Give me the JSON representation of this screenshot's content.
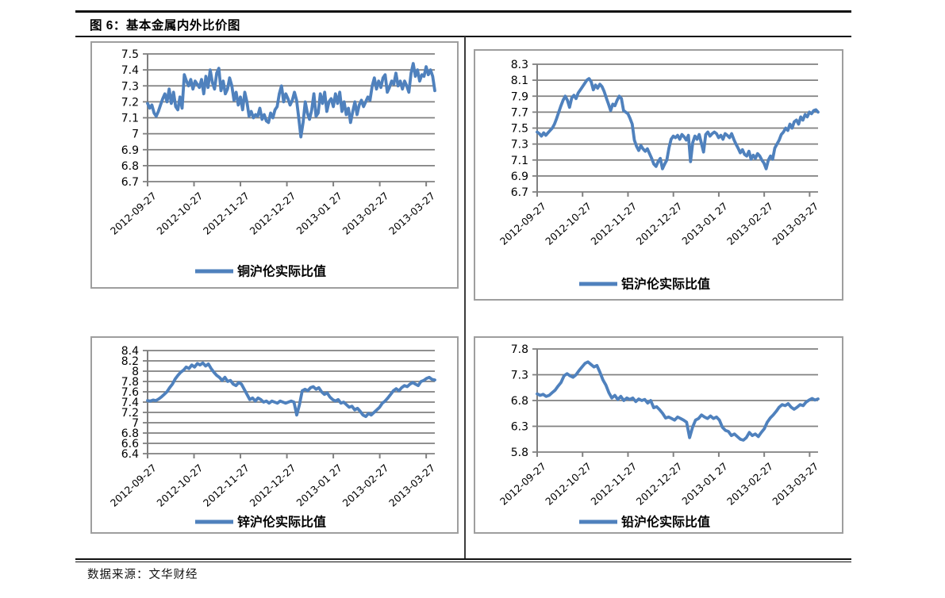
{
  "title": "图 6：基本金属内外比价图",
  "footer": {
    "source_label": "数据来源：文华财经"
  },
  "colors": {
    "line": "#4F81BD",
    "grid": "#808080",
    "box_border": "#9E9E9E"
  },
  "chart_data": [
    {
      "id": "copper",
      "type": "line",
      "series_name": "铜沪伦实际比值",
      "ylim": [
        6.7,
        7.5
      ],
      "yticks": [
        "7.5",
        "7.4",
        "7.3",
        "7.2",
        "7.1",
        "7",
        "6.9",
        "6.8",
        "6.7"
      ],
      "x_tick_labels": [
        "2012-09-27",
        "2012-10-27",
        "2012-11-27",
        "2012-12-27",
        "2013-01 27",
        "2013-02-27",
        "2013-03-27"
      ],
      "values": [
        7.19,
        7.16,
        7.18,
        7.13,
        7.11,
        7.14,
        7.18,
        7.22,
        7.25,
        7.2,
        7.28,
        7.19,
        7.26,
        7.17,
        7.15,
        7.23,
        7.16,
        7.37,
        7.33,
        7.3,
        7.34,
        7.28,
        7.33,
        7.31,
        7.29,
        7.34,
        7.25,
        7.36,
        7.29,
        7.4,
        7.32,
        7.28,
        7.38,
        7.41,
        7.27,
        7.33,
        7.25,
        7.28,
        7.35,
        7.3,
        7.21,
        7.26,
        7.18,
        7.23,
        7.15,
        7.26,
        7.2,
        7.11,
        7.14,
        7.1,
        7.12,
        7.11,
        7.16,
        7.09,
        7.12,
        7.08,
        7.07,
        7.13,
        7.1,
        7.15,
        7.17,
        7.25,
        7.3,
        7.2,
        7.25,
        7.22,
        7.18,
        7.21,
        7.26,
        7.21,
        7.1,
        6.98,
        7.07,
        7.2,
        7.13,
        7.09,
        7.15,
        7.25,
        7.11,
        7.13,
        7.25,
        7.19,
        7.26,
        7.14,
        7.2,
        7.22,
        7.17,
        7.25,
        7.19,
        7.26,
        7.14,
        7.2,
        7.12,
        7.16,
        7.07,
        7.14,
        7.2,
        7.12,
        7.18,
        7.21,
        7.17,
        7.2,
        7.23,
        7.21,
        7.3,
        7.35,
        7.28,
        7.33,
        7.29,
        7.35,
        7.37,
        7.26,
        7.29,
        7.33,
        7.31,
        7.38,
        7.3,
        7.33,
        7.28,
        7.33,
        7.3,
        7.26,
        7.38,
        7.44,
        7.36,
        7.4,
        7.33,
        7.37,
        7.36,
        7.42,
        7.37,
        7.4,
        7.36,
        7.27
      ]
    },
    {
      "id": "aluminum",
      "type": "line",
      "series_name": "铝沪伦实际比值",
      "ylim": [
        6.7,
        8.3
      ],
      "yticks": [
        "8.3",
        "8.1",
        "7.9",
        "7.7",
        "7.5",
        "7.3",
        "7.1",
        "6.9",
        "6.7"
      ],
      "x_tick_labels": [
        "2012-09-27",
        "2012-10-27",
        "2012-11-27",
        "2012-12-27",
        "2013-01 27",
        "2013-02-27",
        "2013-03-27"
      ],
      "values": [
        7.45,
        7.43,
        7.4,
        7.44,
        7.41,
        7.44,
        7.47,
        7.5,
        7.55,
        7.62,
        7.7,
        7.78,
        7.85,
        7.9,
        7.85,
        7.76,
        7.88,
        7.91,
        7.87,
        7.94,
        7.98,
        8.02,
        8.06,
        8.1,
        8.12,
        8.08,
        7.98,
        8.04,
        8.0,
        8.05,
        8.02,
        7.96,
        7.88,
        7.8,
        7.72,
        7.8,
        7.78,
        7.85,
        7.9,
        7.87,
        7.72,
        7.7,
        7.68,
        7.62,
        7.55,
        7.35,
        7.27,
        7.22,
        7.28,
        7.24,
        7.21,
        7.24,
        7.18,
        7.12,
        7.05,
        7.02,
        7.08,
        7.12,
        6.99,
        7.05,
        7.1,
        7.25,
        7.36,
        7.4,
        7.38,
        7.41,
        7.36,
        7.42,
        7.39,
        7.35,
        7.41,
        7.08,
        7.32,
        7.4,
        7.36,
        7.42,
        7.31,
        7.2,
        7.42,
        7.45,
        7.4,
        7.43,
        7.45,
        7.43,
        7.38,
        7.41,
        7.36,
        7.43,
        7.41,
        7.38,
        7.43,
        7.36,
        7.3,
        7.25,
        7.19,
        7.23,
        7.17,
        7.15,
        7.21,
        7.11,
        7.16,
        7.12,
        7.18,
        7.15,
        7.1,
        7.06,
        6.99,
        7.1,
        7.15,
        7.11,
        7.25,
        7.3,
        7.35,
        7.42,
        7.45,
        7.5,
        7.47,
        7.55,
        7.5,
        7.58,
        7.6,
        7.55,
        7.64,
        7.6,
        7.67,
        7.64,
        7.7,
        7.68,
        7.72,
        7.73,
        7.7
      ]
    },
    {
      "id": "zinc",
      "type": "line",
      "series_name": "锌沪伦实际比值",
      "ylim": [
        6.4,
        8.4
      ],
      "yticks": [
        "8.4",
        "8.2",
        "8",
        "7.8",
        "7.6",
        "7.4",
        "7.2",
        "7",
        "6.8",
        "6.6",
        "6.4"
      ],
      "x_tick_labels": [
        "2012-09-27",
        "2012-10-27",
        "2012-11-27",
        "2012-12-27",
        "2013-01 27",
        "2013-02-27",
        "2013-03-27"
      ],
      "values": [
        7.43,
        7.42,
        7.44,
        7.43,
        7.46,
        7.5,
        7.55,
        7.6,
        7.68,
        7.75,
        7.85,
        7.92,
        7.98,
        8.02,
        8.08,
        8.05,
        8.12,
        8.08,
        8.15,
        8.12,
        8.16,
        8.1,
        8.14,
        8.05,
        7.98,
        7.92,
        7.88,
        7.82,
        7.88,
        7.8,
        7.82,
        7.75,
        7.72,
        7.78,
        7.75,
        7.65,
        7.55,
        7.45,
        7.48,
        7.42,
        7.48,
        7.45,
        7.4,
        7.42,
        7.38,
        7.42,
        7.4,
        7.38,
        7.42,
        7.4,
        7.38,
        7.4,
        7.42,
        7.4,
        7.15,
        7.35,
        7.62,
        7.65,
        7.62,
        7.68,
        7.7,
        7.65,
        7.68,
        7.6,
        7.55,
        7.58,
        7.5,
        7.45,
        7.42,
        7.45,
        7.38,
        7.4,
        7.35,
        7.3,
        7.32,
        7.25,
        7.28,
        7.22,
        7.15,
        7.12,
        7.18,
        7.15,
        7.2,
        7.25,
        7.3,
        7.38,
        7.42,
        7.48,
        7.55,
        7.62,
        7.66,
        7.62,
        7.68,
        7.72,
        7.7,
        7.75,
        7.78,
        7.75,
        7.72,
        7.8,
        7.82,
        7.86,
        7.88,
        7.84,
        7.83
      ]
    },
    {
      "id": "lead",
      "type": "line",
      "series_name": "铅沪伦实际比值",
      "ylim": [
        5.8,
        7.8
      ],
      "yticks": [
        "7.8",
        "7.3",
        "6.8",
        "6.3",
        "5.8"
      ],
      "x_tick_labels": [
        "2012-09-27",
        "2012-10-27",
        "2012-11-27",
        "2012-12-27",
        "2013-01 27",
        "2013-02-27",
        "2013-03-27"
      ],
      "values": [
        6.93,
        6.9,
        6.92,
        6.88,
        6.9,
        6.95,
        7.0,
        7.08,
        7.15,
        7.28,
        7.32,
        7.28,
        7.25,
        7.3,
        7.38,
        7.45,
        7.52,
        7.55,
        7.5,
        7.45,
        7.48,
        7.35,
        7.2,
        7.1,
        6.95,
        6.85,
        6.9,
        6.82,
        6.88,
        6.8,
        6.85,
        6.82,
        6.85,
        6.78,
        6.83,
        6.8,
        6.82,
        6.75,
        6.8,
        6.66,
        6.68,
        6.62,
        6.55,
        6.46,
        6.48,
        6.45,
        6.42,
        6.48,
        6.45,
        6.42,
        6.38,
        6.08,
        6.28,
        6.42,
        6.45,
        6.52,
        6.48,
        6.45,
        6.5,
        6.45,
        6.48,
        6.42,
        6.28,
        6.22,
        6.2,
        6.12,
        6.15,
        6.1,
        6.05,
        6.03,
        6.08,
        6.18,
        6.12,
        6.15,
        6.1,
        6.18,
        6.25,
        6.38,
        6.46,
        6.52,
        6.59,
        6.67,
        6.72,
        6.7,
        6.74,
        6.67,
        6.63,
        6.67,
        6.72,
        6.7,
        6.77,
        6.81,
        6.84,
        6.81,
        6.83
      ]
    }
  ]
}
